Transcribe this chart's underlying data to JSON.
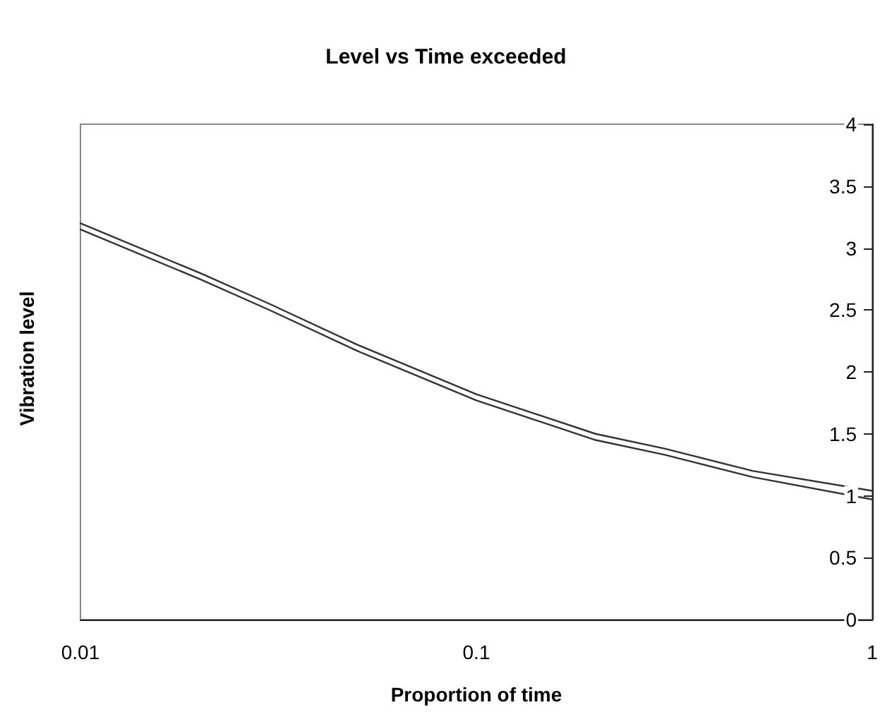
{
  "chart_data": {
    "type": "line",
    "title": "Level vs Time exceeded",
    "xlabel": "Proportion of time",
    "ylabel": "Vibration level",
    "log": "x",
    "xlim": [
      0.01,
      1
    ],
    "xticks": [
      0.01,
      0.1,
      1
    ],
    "ylim": [
      0,
      4
    ],
    "yticks": [
      0,
      0.5,
      1,
      1.5,
      2,
      2.5,
      3,
      3.5,
      4
    ],
    "grid": false,
    "marker": "none",
    "line_style": "solid",
    "x": [
      0.01,
      0.02,
      0.03,
      0.05,
      0.1,
      0.2,
      0.3,
      0.5,
      1
    ],
    "series": [
      {
        "color": "#333333",
        "values": [
          3.2,
          2.8,
          2.55,
          2.22,
          1.82,
          1.5,
          1.38,
          1.2,
          1.04
        ]
      },
      {
        "color": "#333333",
        "values": [
          3.15,
          2.75,
          2.5,
          2.17,
          1.77,
          1.45,
          1.33,
          1.15,
          0.97
        ]
      }
    ]
  }
}
